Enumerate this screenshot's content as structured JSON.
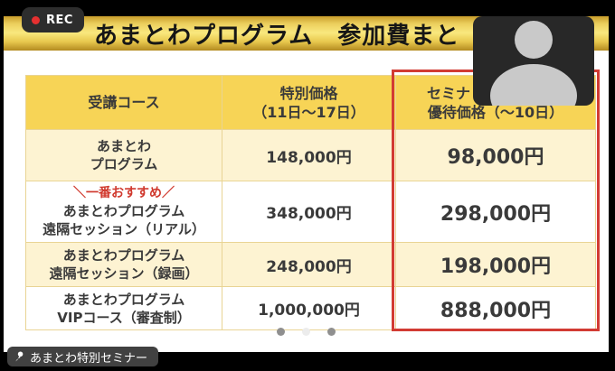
{
  "recording": {
    "label": "REC"
  },
  "title_bar": {
    "title": "あまとわプログラム　参加費まと"
  },
  "table": {
    "headers": {
      "course": "受講コース",
      "special_line1": "特別価格",
      "special_line2": "（11日～17日）",
      "priority_line1": "セミナ",
      "priority_line2": "優待価格（～10日）"
    },
    "rows": [
      {
        "recommend": "",
        "line1": "あまとわ",
        "line2": "プログラム",
        "special": "148,000円",
        "priority": "98,000円"
      },
      {
        "recommend": "＼一番おすすめ／",
        "line1": "あまとわプログラム",
        "line2": "遠隔セッション（リアル）",
        "special": "348,000円",
        "priority": "298,000円"
      },
      {
        "recommend": "",
        "line1": "あまとわプログラム",
        "line2": "遠隔セッション（録画）",
        "special": "248,000円",
        "priority": "198,000円"
      },
      {
        "recommend": "",
        "line1": "あまとわプログラム",
        "line2": "VIPコース（審査制）",
        "special": "1,000,000円",
        "priority": "888,000円"
      }
    ]
  },
  "pagination": {
    "dot_colors": [
      "#8f8f8f",
      "#ececec",
      "#8f8f8f"
    ]
  },
  "footer": {
    "speaker_label": "あまとわ特別セミナー"
  },
  "colors": {
    "highlight_border": "#d23b33",
    "price_red": "#d0392e",
    "header_yellow": "#f7d456",
    "row_cream": "#fdf3d2",
    "title_gold": "#e8c84e"
  }
}
